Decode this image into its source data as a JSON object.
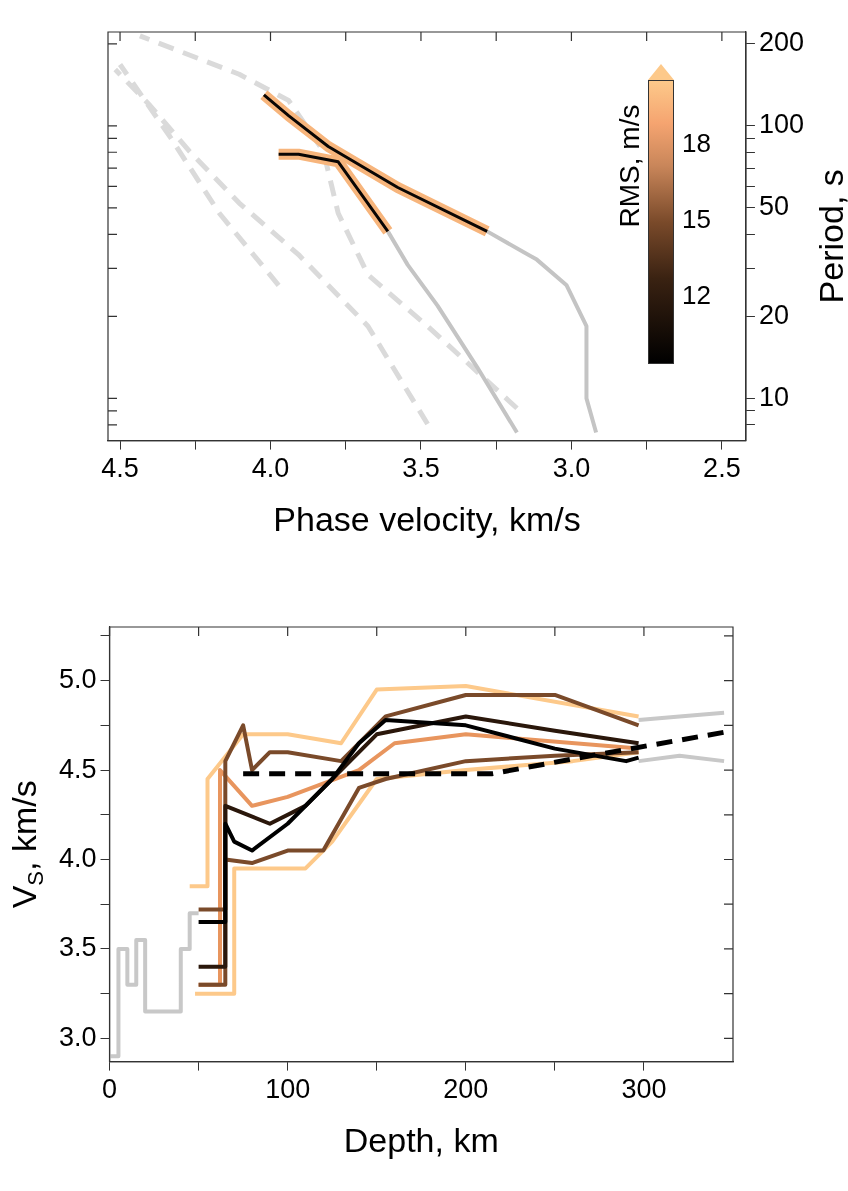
{
  "chart_data": [
    {
      "type": "line",
      "xlabel": "Phase velocity, km/s",
      "ylabel": "Period, s",
      "clabel": "RMS, m/s",
      "annotations": [
        "18",
        "15",
        "12"
      ],
      "marker": "none",
      "log": "y",
      "xlim": [
        4.54,
        2.42
      ],
      "xticks": [
        4.5,
        {
          "value": 4.25,
          "label": null
        },
        {
          "value": 4,
          "label": "4.0"
        },
        {
          "value": 3.75,
          "label": null
        },
        3.5,
        {
          "value": 3.25,
          "label": null
        },
        {
          "value": 3,
          "label": "3.0"
        },
        {
          "value": 2.75,
          "label": null
        },
        2.5
      ],
      "ylim": [
        7,
        221
      ],
      "yticks": [
        {
          "value": 8,
          "label": null
        },
        {
          "value": 9,
          "label": null
        },
        10,
        20,
        {
          "value": 30,
          "label": null
        },
        {
          "value": 40,
          "label": null
        },
        50,
        {
          "value": 60,
          "label": null
        },
        {
          "value": 70,
          "label": null
        },
        {
          "value": 80,
          "label": null
        },
        {
          "value": 90,
          "label": null
        },
        100,
        200
      ],
      "series": [
        {
          "color": "#dadada",
          "line_style": "dashed",
          "x": [
            3.478,
            3.676,
            3.907,
            4.104,
            4.269,
            4.401,
            4.516
          ],
          "values": [
            8.05,
            18.4,
            33.7,
            52.1,
            80.6,
            119,
            161
          ]
        },
        {
          "color": "#dadada",
          "line_style": "dashed",
          "x": [
            3.181,
            3.478,
            3.676,
            3.775,
            3.824,
            3.94,
            4.104,
            4.434
          ],
          "values": [
            9.2,
            18.4,
            28.4,
            47.8,
            80.6,
            124,
            154.6,
            214
          ]
        },
        {
          "color": "#dadada",
          "line_style": "dashed",
          "x": [
            3.973,
            4.17,
            4.335,
            4.5
          ],
          "values": [
            26,
            47.8,
            91.6,
            168
          ]
        },
        {
          "color": "#c4c4c4",
          "x": [
            2.918,
            2.95,
            2.95,
            3.016,
            3.115,
            3.28
          ],
          "values": [
            7.5,
            10,
            18.4,
            26,
            32.3,
            41
          ]
        },
        {
          "color": "#c4c4c4",
          "x": [
            3.181,
            3.313,
            3.445,
            3.544,
            3.61
          ],
          "values": [
            7.5,
            13,
            21.9,
            30.9,
            41
          ]
        },
        {
          "color": "#f7b57c",
          "x": [
            3.28,
            3.577,
            3.808,
            3.94,
            4.022
          ],
          "values": [
            41,
            59.4,
            84,
            109,
            130
          ]
        },
        {
          "color": "#f7b57c",
          "x": [
            3.61,
            3.775,
            3.907,
            3.973
          ],
          "values": [
            41,
            73.8,
            78.7,
            78.7
          ]
        },
        {
          "color": "#0a0604",
          "x": [
            3.28,
            3.577,
            3.808,
            3.94,
            4.022
          ],
          "values": [
            41,
            59.4,
            84,
            109,
            130
          ]
        },
        {
          "color": "#0a0604",
          "x": [
            3.61,
            3.775,
            3.907,
            3.973
          ],
          "values": [
            41,
            73.8,
            78.7,
            78.7
          ]
        }
      ]
    },
    {
      "type": "line",
      "xlabel": "Depth, km",
      "ylabel": "V$_{S}$, km/s",
      "marker": "none",
      "xlim": [
        0,
        350
      ],
      "xticks": [
        0,
        {
          "value": 50,
          "label": null
        },
        100,
        {
          "value": 150,
          "label": null
        },
        200,
        {
          "value": 250,
          "label": null
        },
        300
      ],
      "ylim": [
        2.87,
        5.3
      ],
      "yticks": [
        {
          "value": 3,
          "label": "3.0"
        },
        {
          "value": 3.25,
          "label": null
        },
        3.5,
        {
          "value": 3.75,
          "label": null
        },
        {
          "value": 4,
          "label": "4.0"
        },
        {
          "value": 4.25,
          "label": null
        },
        4.5,
        {
          "value": 4.75,
          "label": null
        },
        {
          "value": 5,
          "label": "5.0"
        },
        {
          "value": 5.25,
          "label": null
        }
      ],
      "series": [
        {
          "color": "#c8c8c8",
          "x": [
            0,
            5,
            5,
            10,
            10,
            15,
            15,
            20,
            20,
            40,
            40,
            45,
            45,
            50
          ],
          "values": [
            2.9,
            2.9,
            3.5,
            3.5,
            3.3,
            3.3,
            3.55,
            3.55,
            3.15,
            3.15,
            3.5,
            3.5,
            3.7,
            3.7
          ]
        },
        {
          "color": "#c8c8c8",
          "x": [
            297,
            320,
            345
          ],
          "values": [
            4.78,
            4.8,
            4.82
          ]
        },
        {
          "color": "#c8c8c8",
          "x": [
            297,
            320,
            345
          ],
          "values": [
            4.55,
            4.58,
            4.55
          ]
        },
        {
          "color": "#fdc98a",
          "x": [
            48,
            70,
            70,
            110,
            125,
            150,
            200,
            260,
            297
          ],
          "values": [
            3.25,
            3.25,
            3.95,
            3.95,
            4.1,
            4.45,
            4.5,
            4.55,
            4.6
          ]
        },
        {
          "color": "#fdc98a",
          "x": [
            45,
            55,
            55,
            75,
            100,
            130,
            150,
            200,
            297
          ],
          "values": [
            3.85,
            3.85,
            4.45,
            4.7,
            4.7,
            4.65,
            4.95,
            4.97,
            4.8
          ]
        },
        {
          "color": "#e8955e",
          "x": [
            50,
            62,
            62,
            80,
            100,
            140,
            160,
            200,
            297
          ],
          "values": [
            3.3,
            3.3,
            4.5,
            4.3,
            4.35,
            4.5,
            4.65,
            4.7,
            4.62
          ]
        },
        {
          "color": "#7a4a2a",
          "x": [
            50,
            65,
            65,
            75,
            80,
            90,
            100,
            130,
            155,
            200,
            250,
            297
          ],
          "values": [
            3.72,
            3.72,
            4.55,
            4.75,
            4.5,
            4.6,
            4.6,
            4.55,
            4.8,
            4.92,
            4.92,
            4.75
          ]
        },
        {
          "color": "#7a4a2a",
          "x": [
            50,
            65,
            65,
            80,
            100,
            120,
            140,
            155,
            200,
            250,
            297
          ],
          "values": [
            3.3,
            3.3,
            4.0,
            3.98,
            4.05,
            4.05,
            4.4,
            4.45,
            4.55,
            4.58,
            4.6
          ]
        },
        {
          "color": "#2a170b",
          "x": [
            50,
            65,
            65,
            90,
            110,
            130,
            150,
            200,
            250,
            297
          ],
          "values": [
            3.4,
            3.4,
            4.3,
            4.2,
            4.3,
            4.5,
            4.7,
            4.8,
            4.72,
            4.65
          ]
        },
        {
          "color": "#000000",
          "x": [
            50,
            65,
            65,
            70,
            80,
            100,
            125,
            140,
            155,
            200,
            250,
            290,
            297
          ],
          "values": [
            3.65,
            3.65,
            4.2,
            4.1,
            4.05,
            4.2,
            4.45,
            4.65,
            4.78,
            4.75,
            4.62,
            4.55,
            4.57
          ]
        },
        {
          "color": "#000000",
          "line_style": "dashed",
          "x": [
            75,
            215,
            270,
            350
          ],
          "values": [
            4.48,
            4.48,
            4.58,
            4.72
          ]
        }
      ]
    }
  ]
}
